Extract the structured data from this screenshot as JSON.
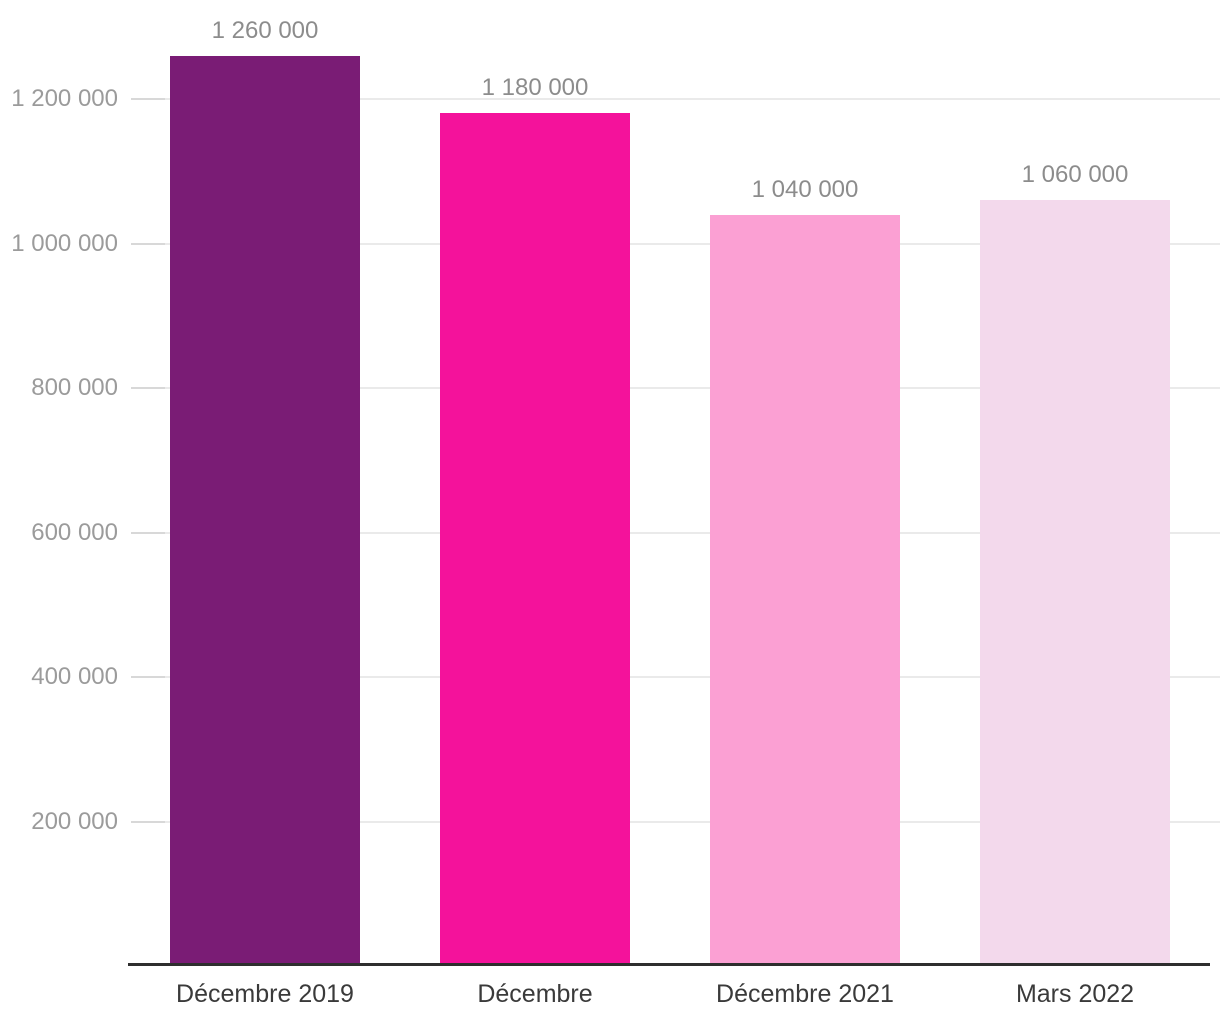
{
  "chart_data": {
    "type": "bar",
    "categories": [
      "Décembre 2019",
      "Décembre",
      "Décembre 2021",
      "Mars 2022"
    ],
    "values": [
      1260000,
      1180000,
      1040000,
      1060000
    ],
    "value_labels": [
      "1 260 000",
      "1 180 000",
      "1 040 000",
      "1 060 000"
    ],
    "bar_colors": [
      "#7A1C75",
      "#F4129B",
      "#FBA0D3",
      "#F3D9EC"
    ],
    "y_ticks": [
      200000,
      400000,
      600000,
      800000,
      1000000,
      1200000
    ],
    "y_tick_labels": [
      "200 000",
      "400 000",
      "600 000",
      "800 000",
      "1 000 000",
      "1 200 000"
    ],
    "ylim": [
      0,
      1340000
    ],
    "grid": "horizontal",
    "legend_position": "none"
  },
  "style": {
    "background_color": "#FFFFFF",
    "grid_color": "#EAEAEA",
    "tick_color": "#D8D8D8",
    "axis_color": "#2E2E2E",
    "y_tick_label_color": "#9B9B9B",
    "value_label_color": "#8C8C8C",
    "x_label_color": "#3A3A3A"
  }
}
